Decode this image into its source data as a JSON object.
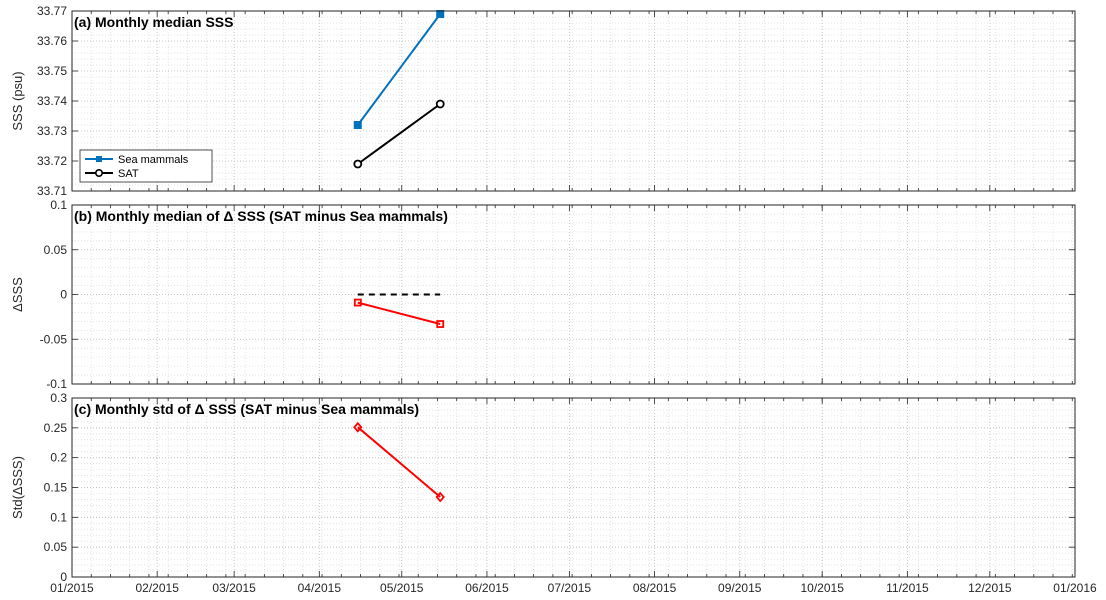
{
  "chart_data": [
    {
      "type": "line",
      "title": "(a) Monthly median SSS",
      "xlabel": "",
      "ylabel": "SSS (psu)",
      "xlim": [
        "2015-01-01",
        "2016-01-01"
      ],
      "ylim": [
        33.71,
        33.77
      ],
      "yticks": [
        33.71,
        33.72,
        33.73,
        33.74,
        33.75,
        33.76,
        33.77
      ],
      "ytick_labels": [
        "33.71",
        "33.72",
        "33.73",
        "33.74",
        "33.75",
        "33.76",
        "33.77"
      ],
      "grid": true,
      "legend": "bottom-left",
      "series": [
        {
          "name": "Sea mammals",
          "color": "#0072BD",
          "marker": "square-filled",
          "x": [
            "2015-04-15",
            "2015-05-15"
          ],
          "y": [
            33.732,
            33.769
          ]
        },
        {
          "name": "SAT",
          "color": "#000000",
          "marker": "circle-open",
          "x": [
            "2015-04-15",
            "2015-05-15"
          ],
          "y": [
            33.719,
            33.739
          ]
        }
      ]
    },
    {
      "type": "line",
      "title": "(b) Monthly median of Δ SSS (SAT minus Sea mammals)",
      "xlabel": "",
      "ylabel": "ΔSSS",
      "xlim": [
        "2015-01-01",
        "2016-01-01"
      ],
      "ylim": [
        -0.1,
        0.1
      ],
      "yticks": [
        -0.1,
        -0.05,
        0,
        0.05,
        0.1
      ],
      "ytick_labels": [
        "-0.1",
        "-0.05",
        "0",
        "0.05",
        "0.1"
      ],
      "grid": true,
      "series": [
        {
          "color": "#FF0000",
          "marker": "square",
          "x": [
            "2015-04-15",
            "2015-05-15"
          ],
          "y": [
            -0.009,
            -0.033
          ]
        },
        {
          "color": "#000000",
          "style": "dashed",
          "marker": "none",
          "x": [
            "2015-04-15",
            "2015-05-15"
          ],
          "y": [
            0,
            0
          ]
        }
      ]
    },
    {
      "type": "line",
      "title": "(c) Monthly std of Δ SSS (SAT minus Sea mammals)",
      "xlabel": "",
      "ylabel": "Std(ΔSSS)",
      "xlim": [
        "2015-01-01",
        "2016-01-01"
      ],
      "ylim": [
        0,
        0.3
      ],
      "yticks": [
        0,
        0.05,
        0.1,
        0.15,
        0.2,
        0.25,
        0.3
      ],
      "ytick_labels": [
        "0",
        "0.05",
        "0.1",
        "0.15",
        "0.2",
        "0.25",
        "0.3"
      ],
      "grid": true,
      "series": [
        {
          "color": "#FF0000",
          "marker": "diamond",
          "x": [
            "2015-04-15",
            "2015-05-15"
          ],
          "y": [
            0.251,
            0.134
          ]
        }
      ]
    }
  ],
  "x_axis": {
    "ticks": [
      "2015-01-01",
      "2015-02-01",
      "2015-03-01",
      "2015-04-01",
      "2015-05-01",
      "2015-06-01",
      "2015-07-01",
      "2015-08-01",
      "2015-09-01",
      "2015-10-01",
      "2015-11-01",
      "2015-12-01",
      "2016-01-01"
    ],
    "tick_labels": [
      "01/2015",
      "02/2015",
      "03/2015",
      "04/2015",
      "05/2015",
      "06/2015",
      "07/2015",
      "08/2015",
      "09/2015",
      "10/2015",
      "11/2015",
      "12/2015",
      "01/2016"
    ]
  }
}
